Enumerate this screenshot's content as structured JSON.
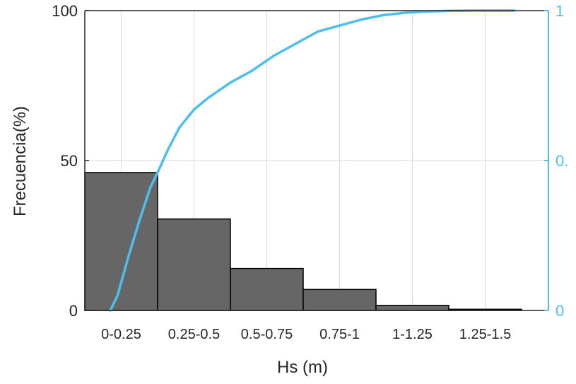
{
  "chart_data": {
    "type": "bar",
    "categories": [
      "0-0.25",
      "0.25-0.5",
      "0.5-0.75",
      "0.75-1",
      "1-1.25",
      "1.25-1.5"
    ],
    "series": [
      {
        "values": [
          46,
          30.5,
          14,
          7,
          1.7,
          0.4
        ],
        "axis": "left",
        "color": "#666666"
      },
      {
        "type": "line",
        "axis": "right",
        "color": "#4DBEEE",
        "x": [
          0.35,
          0.45,
          0.6,
          0.75,
          0.9,
          1.0,
          1.15,
          1.3,
          1.5,
          1.7,
          2.0,
          2.3,
          2.6,
          2.9,
          3.2,
          3.5,
          3.8,
          4.1,
          4.4,
          4.7,
          5.0,
          5.3,
          5.6,
          5.9
        ],
        "values": [
          0.0,
          0.05,
          0.18,
          0.3,
          0.41,
          0.46,
          0.54,
          0.61,
          0.67,
          0.71,
          0.76,
          0.8,
          0.85,
          0.89,
          0.93,
          0.95,
          0.97,
          0.985,
          0.993,
          0.997,
          0.999,
          1.0,
          1.0,
          1.0
        ]
      }
    ],
    "xlabel": "Hs (m)",
    "ylabel": "Frecuencia(%)",
    "ylim": [
      0,
      100
    ],
    "y2lim": [
      0,
      1
    ],
    "yticks": [
      "0",
      "50",
      "100"
    ],
    "y2ticks": [
      "0",
      "0.",
      "1"
    ],
    "grid": true,
    "colors": {
      "axis": "#262626",
      "right_axis": "#4DBEEE",
      "bar_edge": "#000000",
      "grid": "#d9d9d9"
    }
  }
}
